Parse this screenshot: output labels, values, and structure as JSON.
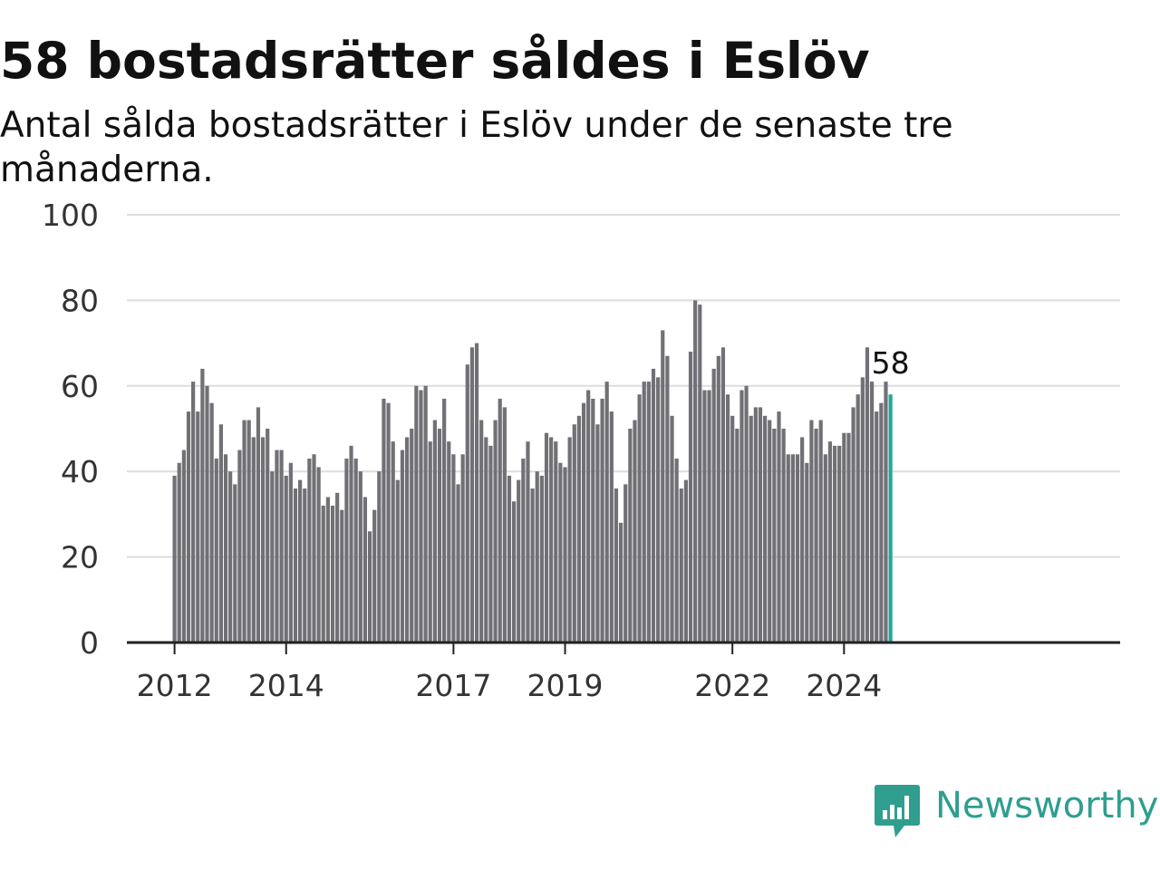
{
  "title": "58 bostadsrätter såldes i Eslöv",
  "subtitle": "Antal sålda bostadsrätter i Eslöv under de senaste tre månaderna.",
  "brand": {
    "name": "Newsworthy",
    "color": "#2f9e8f",
    "icon": "newsworthy-chart-icon"
  },
  "colors": {
    "bar": "#717075",
    "highlight": "#24a899",
    "grid": "#dddddd",
    "axis": "#222222"
  },
  "chart_data": {
    "type": "bar",
    "x_start": "2012-01",
    "interval": "month",
    "values": [
      39,
      42,
      45,
      54,
      61,
      54,
      64,
      60,
      56,
      43,
      51,
      44,
      40,
      37,
      45,
      52,
      52,
      48,
      55,
      48,
      50,
      40,
      45,
      45,
      39,
      42,
      36,
      38,
      36,
      43,
      44,
      41,
      32,
      34,
      32,
      35,
      31,
      43,
      46,
      43,
      40,
      34,
      26,
      31,
      40,
      57,
      56,
      47,
      38,
      45,
      48,
      50,
      60,
      59,
      60,
      47,
      52,
      50,
      57,
      47,
      44,
      37,
      44,
      65,
      69,
      70,
      52,
      48,
      46,
      52,
      57,
      55,
      39,
      33,
      38,
      43,
      47,
      36,
      40,
      39,
      49,
      48,
      47,
      42,
      41,
      48,
      51,
      53,
      56,
      59,
      57,
      51,
      57,
      61,
      54,
      36,
      28,
      37,
      50,
      52,
      58,
      61,
      61,
      64,
      62,
      73,
      67,
      53,
      43,
      36,
      38,
      68,
      80,
      79,
      59,
      59,
      64,
      67,
      69,
      58,
      53,
      50,
      59,
      60,
      53,
      55,
      55,
      53,
      52,
      50,
      54,
      50,
      44,
      44,
      44,
      48,
      42,
      52,
      50,
      52,
      44,
      47,
      46,
      46,
      49,
      49,
      55,
      58,
      62,
      69,
      61,
      54,
      56,
      61,
      58
    ],
    "highlight_index": 154,
    "highlight_label": "58",
    "ylim": [
      0,
      100
    ],
    "y_ticks": [
      0,
      20,
      40,
      60,
      80,
      100
    ],
    "x_ticks": [
      {
        "label": "2012",
        "index": 0
      },
      {
        "label": "2014",
        "index": 24
      },
      {
        "label": "2017",
        "index": 60
      },
      {
        "label": "2019",
        "index": 84
      },
      {
        "label": "2022",
        "index": 120
      },
      {
        "label": "2024",
        "index": 144
      }
    ],
    "grid": true,
    "legend": "none"
  }
}
